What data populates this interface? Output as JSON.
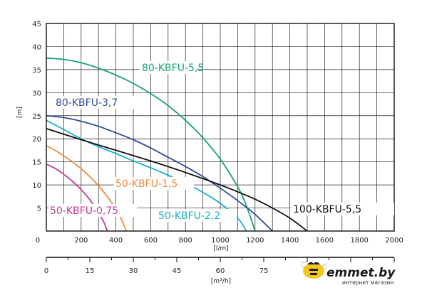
{
  "chart_data": {
    "type": "line",
    "xlabel": "[l/m]",
    "ylabel": "[m]",
    "xlim": [
      0,
      2000
    ],
    "ylim": [
      0,
      45
    ],
    "x_ticks": [
      0,
      200,
      400,
      600,
      800,
      1000,
      1200,
      1400,
      1600,
      1800,
      2000
    ],
    "y_ticks": [
      0,
      5,
      10,
      15,
      20,
      25,
      30,
      35,
      40,
      45
    ],
    "grid": true,
    "secondary_x_axis": {
      "label": "[m³/h]",
      "ticks": [
        0,
        15,
        30,
        45,
        60,
        75
      ],
      "lim": [
        0,
        120
      ]
    },
    "series": [
      {
        "name": "80-KBFU-5,5",
        "color": "#1aa56e",
        "x": [
          0,
          100,
          200,
          300,
          400,
          500,
          600,
          700,
          800,
          900,
          1000,
          1100,
          1150,
          1200
        ],
        "y": [
          37.5,
          37.2,
          36.5,
          35.3,
          33.8,
          32.0,
          29.8,
          27.2,
          24.0,
          20.2,
          15.6,
          9.6,
          5.5,
          0
        ]
      },
      {
        "name": "80-KBFU-3,7",
        "color": "#2e4a9c",
        "x": [
          0,
          100,
          200,
          300,
          400,
          500,
          600,
          700,
          800,
          900,
          1000,
          1100,
          1200,
          1300
        ],
        "y": [
          25.0,
          24.6,
          23.8,
          22.7,
          21.3,
          19.8,
          18.0,
          16.0,
          14.0,
          11.8,
          9.3,
          6.6,
          3.6,
          0
        ]
      },
      {
        "name": "50-KBFU-2,2",
        "color": "#1bb0c8",
        "x": [
          0,
          100,
          200,
          300,
          400,
          500,
          600,
          700,
          800,
          900,
          1000,
          1100,
          1150
        ],
        "y": [
          24.0,
          22.0,
          20.0,
          18.3,
          16.8,
          15.2,
          13.7,
          12.1,
          10.4,
          8.4,
          6.0,
          2.8,
          0
        ]
      },
      {
        "name": "100-KBFU-5,5",
        "color": "#111111",
        "x": [
          0,
          200,
          400,
          600,
          800,
          1000,
          1100,
          1200,
          1300,
          1400,
          1500
        ],
        "y": [
          22.2,
          19.8,
          17.5,
          15.2,
          12.7,
          10.0,
          8.5,
          6.9,
          5.0,
          2.8,
          0
        ]
      },
      {
        "name": "50-KBFU-1,5",
        "color": "#f08a3c",
        "x": [
          0,
          50,
          100,
          150,
          200,
          250,
          300,
          350,
          400,
          430,
          460
        ],
        "y": [
          18.5,
          17.5,
          16.3,
          15.0,
          13.5,
          11.8,
          9.8,
          7.5,
          4.8,
          2.7,
          0
        ]
      },
      {
        "name": "50-KBFU-0,75",
        "color": "#c23a94",
        "x": [
          0,
          50,
          100,
          150,
          200,
          250,
          300,
          330,
          350
        ],
        "y": [
          14.5,
          13.6,
          12.3,
          10.8,
          9.0,
          6.8,
          4.0,
          2.0,
          0
        ]
      }
    ]
  },
  "labels": {
    "s80_55": "80-KBFU-5,5",
    "s80_37": "80-KBFU-3,7",
    "s50_15": "50-KBFU-1,5",
    "s50_22": "50-KBFU-2,2",
    "s100_55": "100-KBFU-5,5",
    "s50_075": "50-KBFU-0,75"
  },
  "logo": {
    "text": "emmet.by",
    "subtitle": "интернет магазин",
    "colors": {
      "bee_yellow": "#f3c61a",
      "bee_black": "#1a1a1a"
    }
  }
}
